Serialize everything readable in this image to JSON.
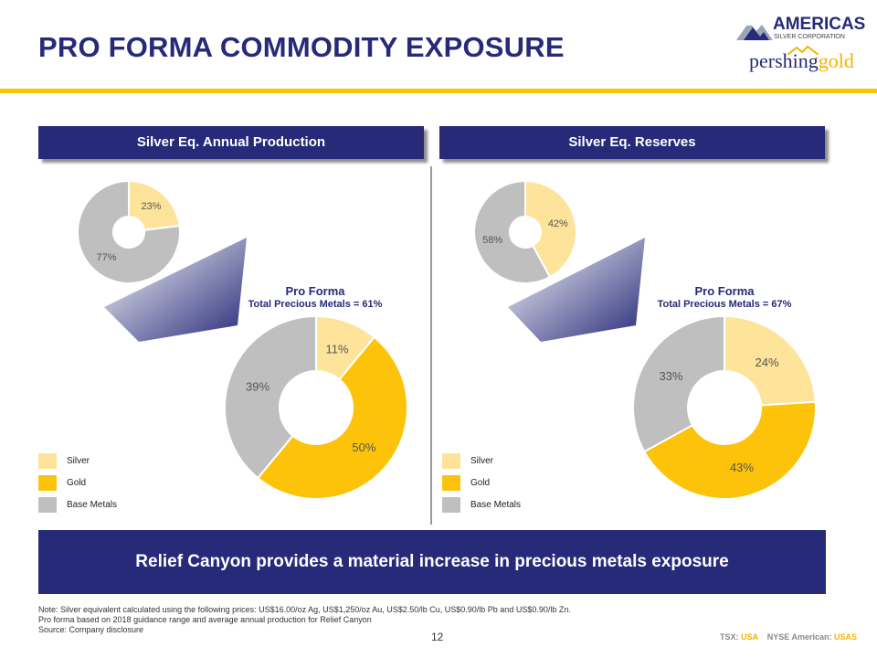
{
  "header": {
    "title": "PRO FORMA COMMODITY EXPOSURE",
    "logos": {
      "company1_line1": "AMERICAS",
      "company1_line2": "SILVER CORPORATION",
      "company2_part1": "pershing",
      "company2_part2": "gold"
    }
  },
  "colors": {
    "navy": "#262a78",
    "silver": "#fde49a",
    "gold": "#fdc30a",
    "base_metals": "#bfbfbf",
    "accent_yellow": "#f6c700"
  },
  "legend": [
    {
      "label": "Silver",
      "color": "#fde49a"
    },
    {
      "label": "Gold",
      "color": "#fdc30a"
    },
    {
      "label": "Base Metals",
      "color": "#bfbfbf"
    }
  ],
  "chart_data": [
    {
      "type": "pie",
      "panel": "left",
      "header": "Silver Eq. Annual  Production",
      "donut": "standalone",
      "categories": [
        "Silver",
        "Base Metals"
      ],
      "values": [
        23,
        77
      ],
      "labels": [
        "23%",
        "77%"
      ],
      "colors": [
        "#fde49a",
        "#bfbfbf"
      ]
    },
    {
      "type": "pie",
      "panel": "left",
      "donut": "pro-forma",
      "title": "Pro Forma",
      "subtitle": "Total Precious Metals = 61%",
      "categories": [
        "Silver",
        "Gold",
        "Base Metals"
      ],
      "values": [
        11,
        50,
        39
      ],
      "labels": [
        "11%",
        "50%",
        "39%"
      ],
      "colors": [
        "#fde49a",
        "#fdc30a",
        "#bfbfbf"
      ]
    },
    {
      "type": "pie",
      "panel": "right",
      "header": "Silver Eq. Reserves",
      "donut": "standalone",
      "categories": [
        "Silver",
        "Base Metals"
      ],
      "values": [
        42,
        58
      ],
      "labels": [
        "42%",
        "58%"
      ],
      "colors": [
        "#fde49a",
        "#bfbfbf"
      ]
    },
    {
      "type": "pie",
      "panel": "right",
      "donut": "pro-forma",
      "title": "Pro Forma",
      "subtitle": "Total Precious Metals = 67%",
      "categories": [
        "Silver",
        "Gold",
        "Base Metals"
      ],
      "values": [
        24,
        43,
        33
      ],
      "labels": [
        "24%",
        "43%",
        "33%"
      ],
      "colors": [
        "#fde49a",
        "#fdc30a",
        "#bfbfbf"
      ]
    }
  ],
  "callout": "Relief Canyon provides a material increase in precious metals exposure",
  "notes": [
    "Note:  Silver equivalent calculated using the following prices: US$16.00/oz Ag, US$1,250/oz Au, US$2.50/lb Cu, US$0.90/lb Pb and US$0.90/lb Zn.",
    "Pro  forma based on 2018 guidance range and average annual production for Relief Canyon",
    "Source: Company disclosure"
  ],
  "footer": {
    "page_number": "12",
    "ticker_tsx_label": "TSX:",
    "ticker_tsx": "USA",
    "ticker_nyse_label": "NYSE  American:",
    "ticker_nyse": "USAS"
  }
}
